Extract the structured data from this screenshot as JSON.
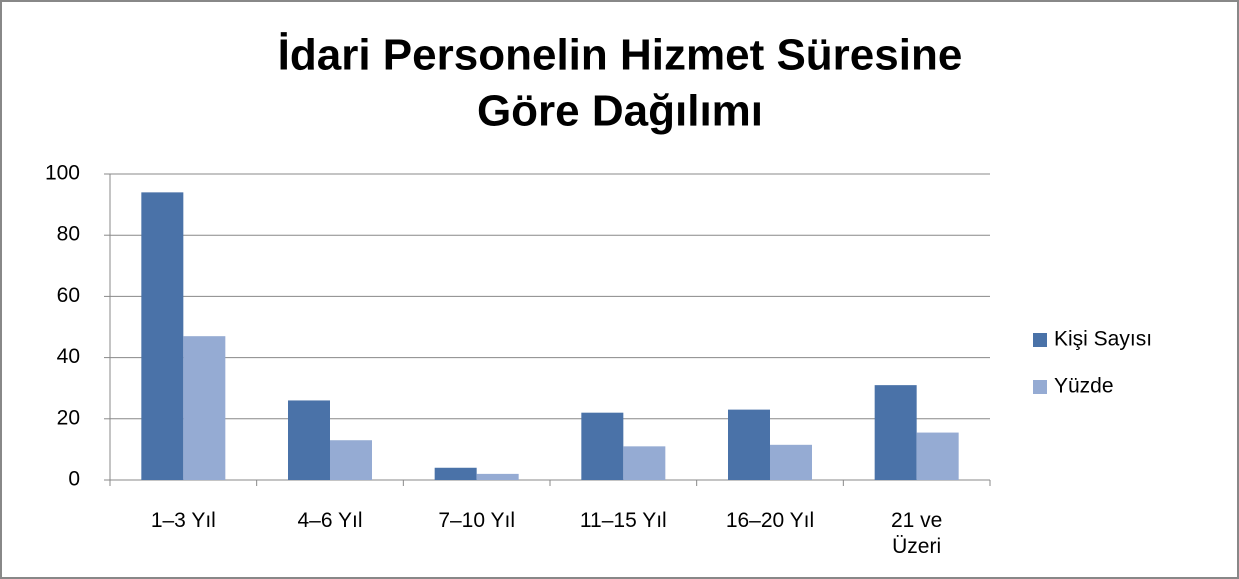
{
  "chart_data": {
    "type": "bar",
    "title": [
      "İdari Personelin  Hizmet Süresine",
      "Göre Dağılımı"
    ],
    "categories": [
      "1–3 Yıl",
      "4–6 Yıl",
      "7–10 Yıl",
      "11–15 Yıl",
      "16–20 Yıl",
      "21 ve\nÜzeri"
    ],
    "series": [
      {
        "name": "Kişi Sayısı",
        "color": "#4a72a8",
        "values": [
          94,
          26,
          4,
          22,
          23,
          31
        ]
      },
      {
        "name": "Yüzde",
        "color": "#95abd3",
        "values": [
          47,
          13,
          2,
          11,
          11.5,
          15.5
        ]
      }
    ],
    "ylim": [
      0,
      100
    ],
    "yticks": [
      0,
      20,
      40,
      60,
      80,
      100
    ],
    "grid": true,
    "legend": "right"
  }
}
